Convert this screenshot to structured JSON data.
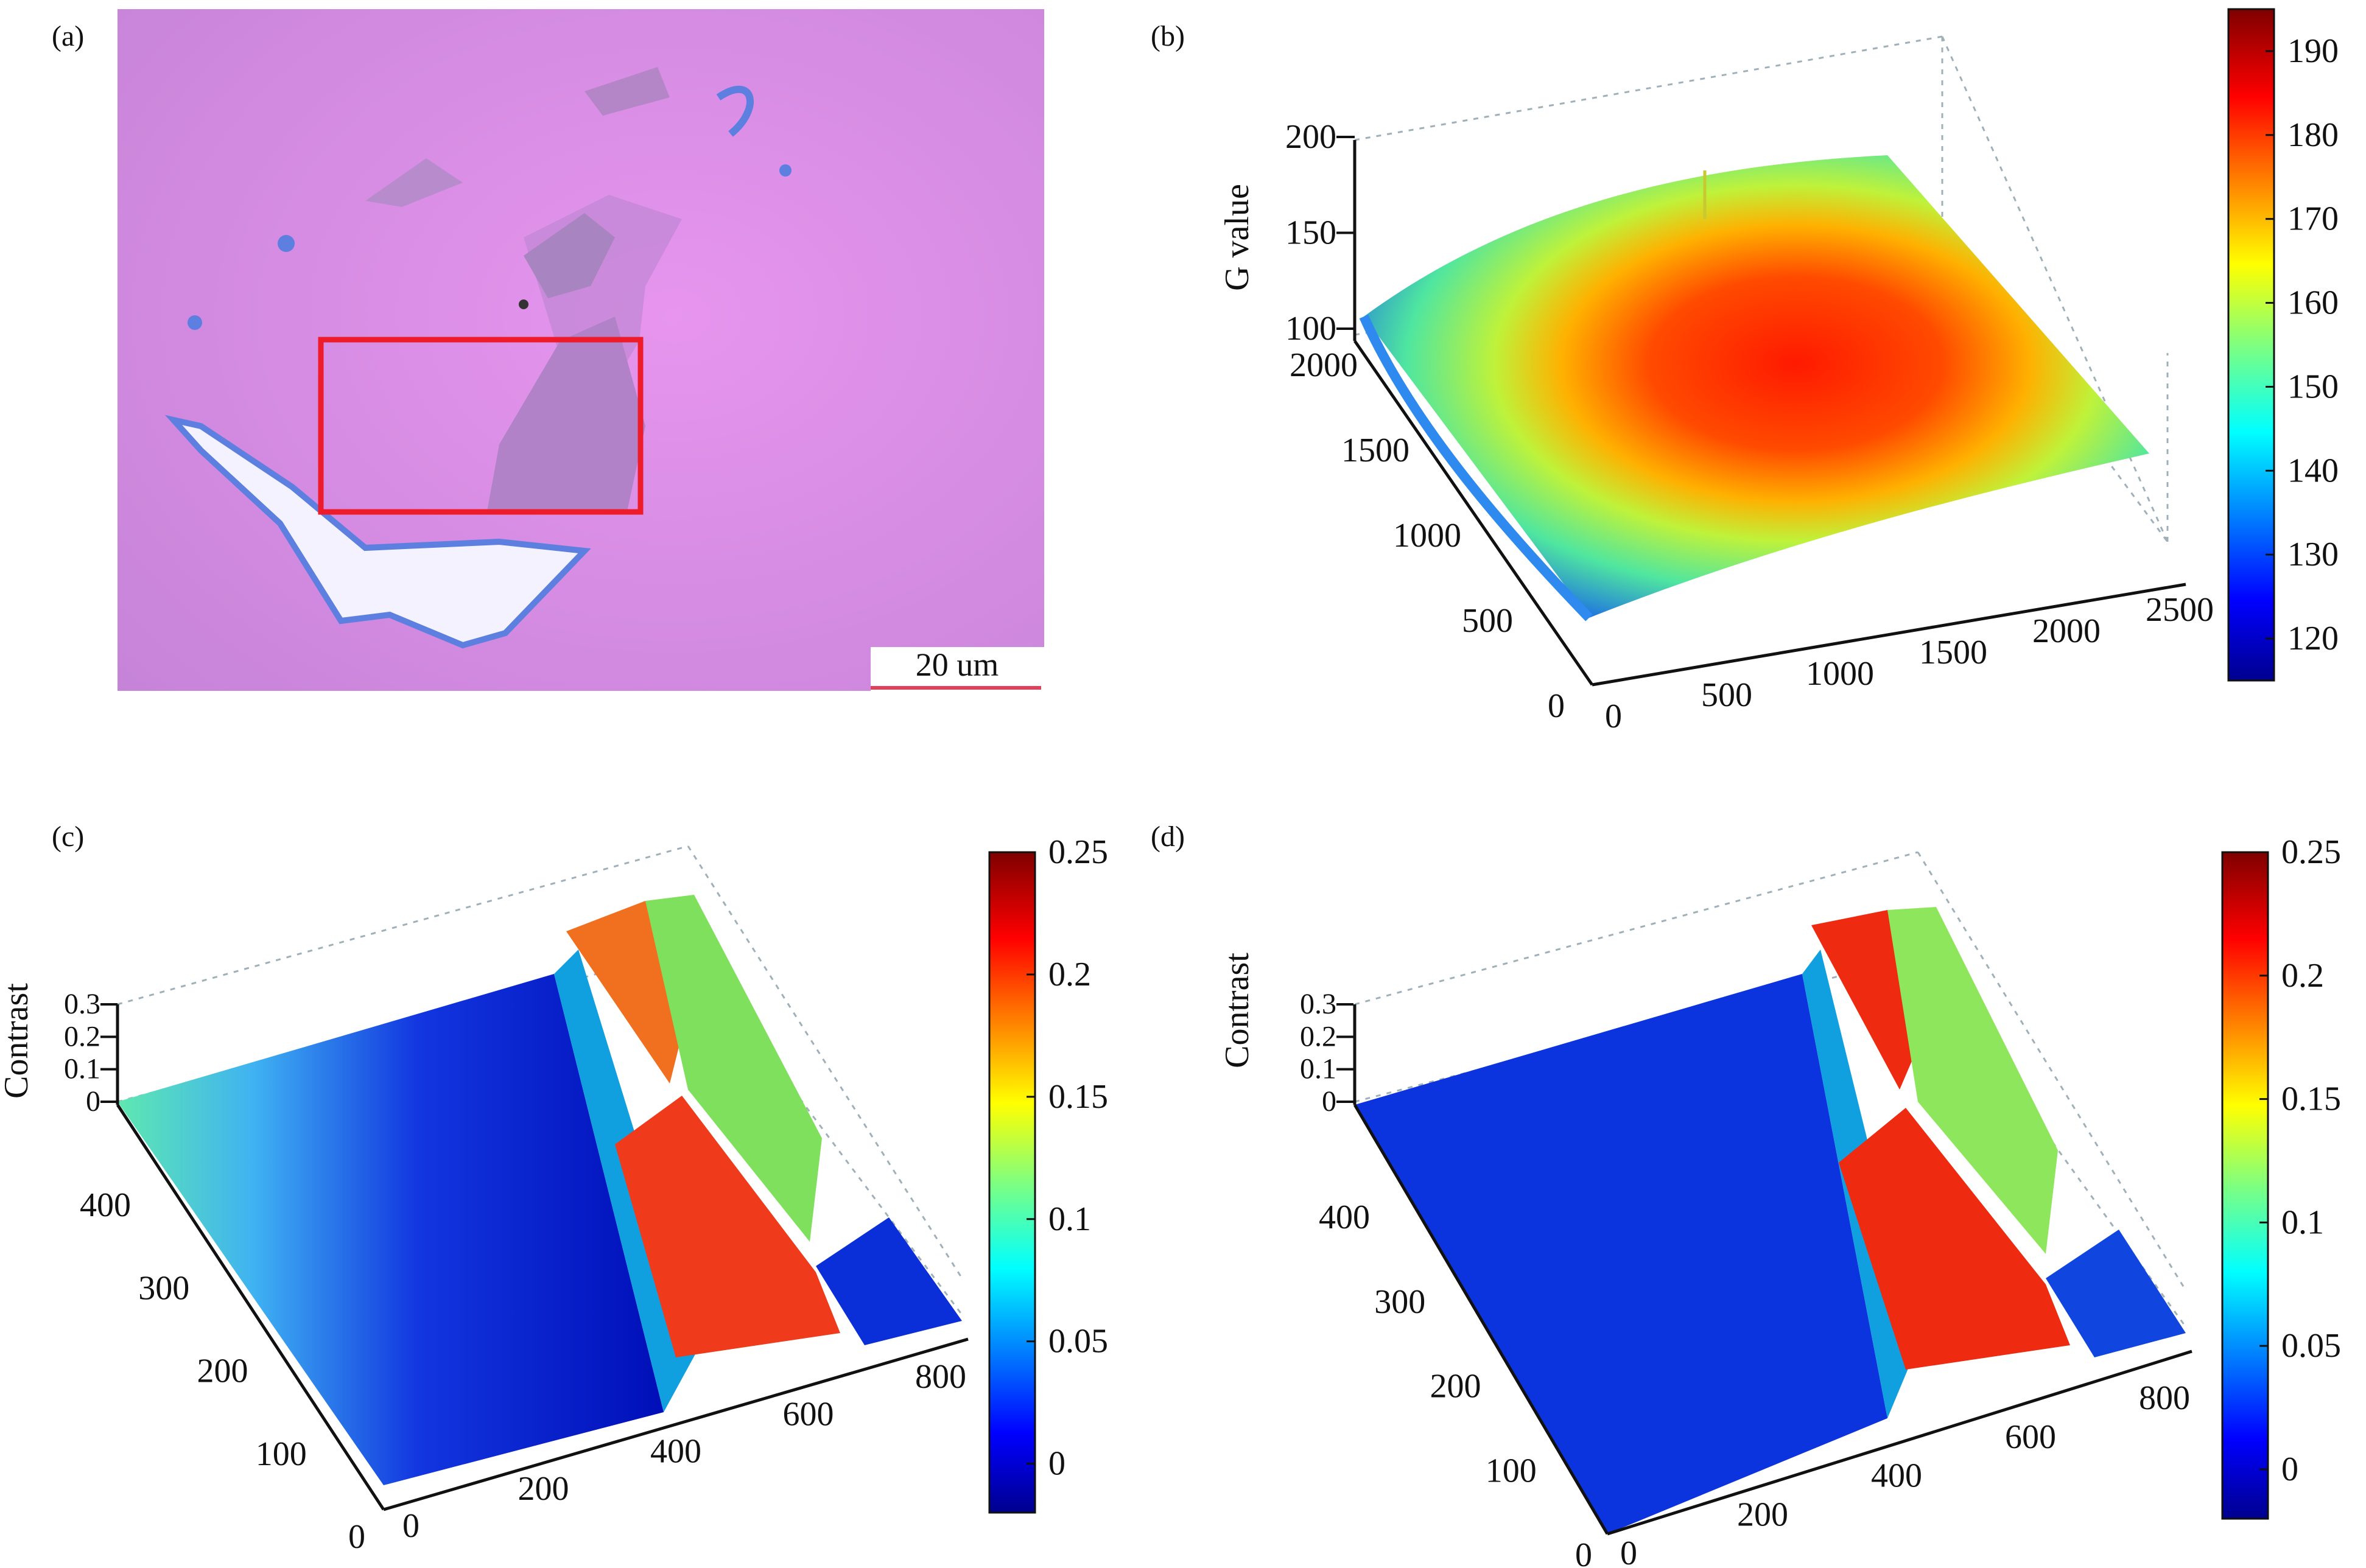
{
  "figure": {
    "panel_labels": [
      "(a)",
      "(b)",
      "(c)",
      "(d)"
    ],
    "colors": {
      "substrate": "#dc8ce6",
      "flake_thin": "#c284d6",
      "flake_thick": "#a97ec3",
      "debris": "#5c7fe0",
      "roi_box": "#ee1c2a",
      "scale_bar": "#e0405a"
    }
  },
  "micrograph": {
    "scale_bar_label": "20 um",
    "roi": "red rectangle"
  },
  "chart_data": [
    {
      "panel": "(b)",
      "type": "surface",
      "zlabel": "G value",
      "x_ticks": [
        "0",
        "500",
        "1000",
        "1500",
        "2000",
        "2500"
      ],
      "y_ticks": [
        "0",
        "500",
        "1000",
        "1500",
        "2000"
      ],
      "z_ticks": [
        "100",
        "150",
        "200"
      ],
      "xlim": [
        0,
        2600
      ],
      "ylim": [
        0,
        2000
      ],
      "zlim": [
        100,
        200
      ],
      "colorbar": {
        "range": [
          115,
          195
        ],
        "ticks": [
          "120",
          "130",
          "140",
          "150",
          "160",
          "170",
          "180",
          "190"
        ]
      },
      "surface": {
        "peak_value": 187,
        "peak_x": 1300,
        "peak_y": 1000,
        "edge_min": 115,
        "corner_values": [
          118,
          135,
          152,
          140
        ]
      }
    },
    {
      "panel": "(c)",
      "type": "surface",
      "zlabel": "Contrast",
      "x_ticks": [
        "0",
        "200",
        "400",
        "600",
        "800"
      ],
      "y_ticks": [
        "0",
        "100",
        "200",
        "300",
        "400"
      ],
      "z_ticks": [
        "0",
        "0.1",
        "0.2",
        "0.3"
      ],
      "xlim": [
        0,
        860
      ],
      "ylim": [
        0,
        480
      ],
      "zlim": [
        0,
        0.3
      ],
      "colorbar": {
        "range": [
          -0.02,
          0.25
        ],
        "ticks": [
          "0",
          "0.05",
          "0.1",
          "0.15",
          "0.2",
          "0.25"
        ]
      },
      "regions": [
        {
          "name": "substrate (left, uncorrected gradient)",
          "value_min": 0.0,
          "value_max": 0.08
        },
        {
          "name": "thick flake",
          "value": 0.17
        },
        {
          "name": "thin flake",
          "value": 0.11
        },
        {
          "name": "substrate (right)",
          "value": 0.0
        }
      ]
    },
    {
      "panel": "(d)",
      "type": "surface",
      "zlabel": "Contrast",
      "x_ticks": [
        "0",
        "200",
        "400",
        "600",
        "800"
      ],
      "y_ticks": [
        "0",
        "100",
        "200",
        "300",
        "400"
      ],
      "z_ticks": [
        "0",
        "0.1",
        "0.2",
        "0.3"
      ],
      "xlim": [
        0,
        860
      ],
      "ylim": [
        0,
        480
      ],
      "zlim": [
        0,
        0.3
      ],
      "colorbar": {
        "range": [
          -0.02,
          0.25
        ],
        "ticks": [
          "0",
          "0.05",
          "0.1",
          "0.15",
          "0.2",
          "0.25"
        ]
      },
      "regions": [
        {
          "name": "substrate (flat)",
          "value": 0.01
        },
        {
          "name": "thick flake",
          "value": 0.19
        },
        {
          "name": "thin flake",
          "value": 0.12
        },
        {
          "name": "substrate (right)",
          "value": 0.02
        }
      ]
    }
  ]
}
